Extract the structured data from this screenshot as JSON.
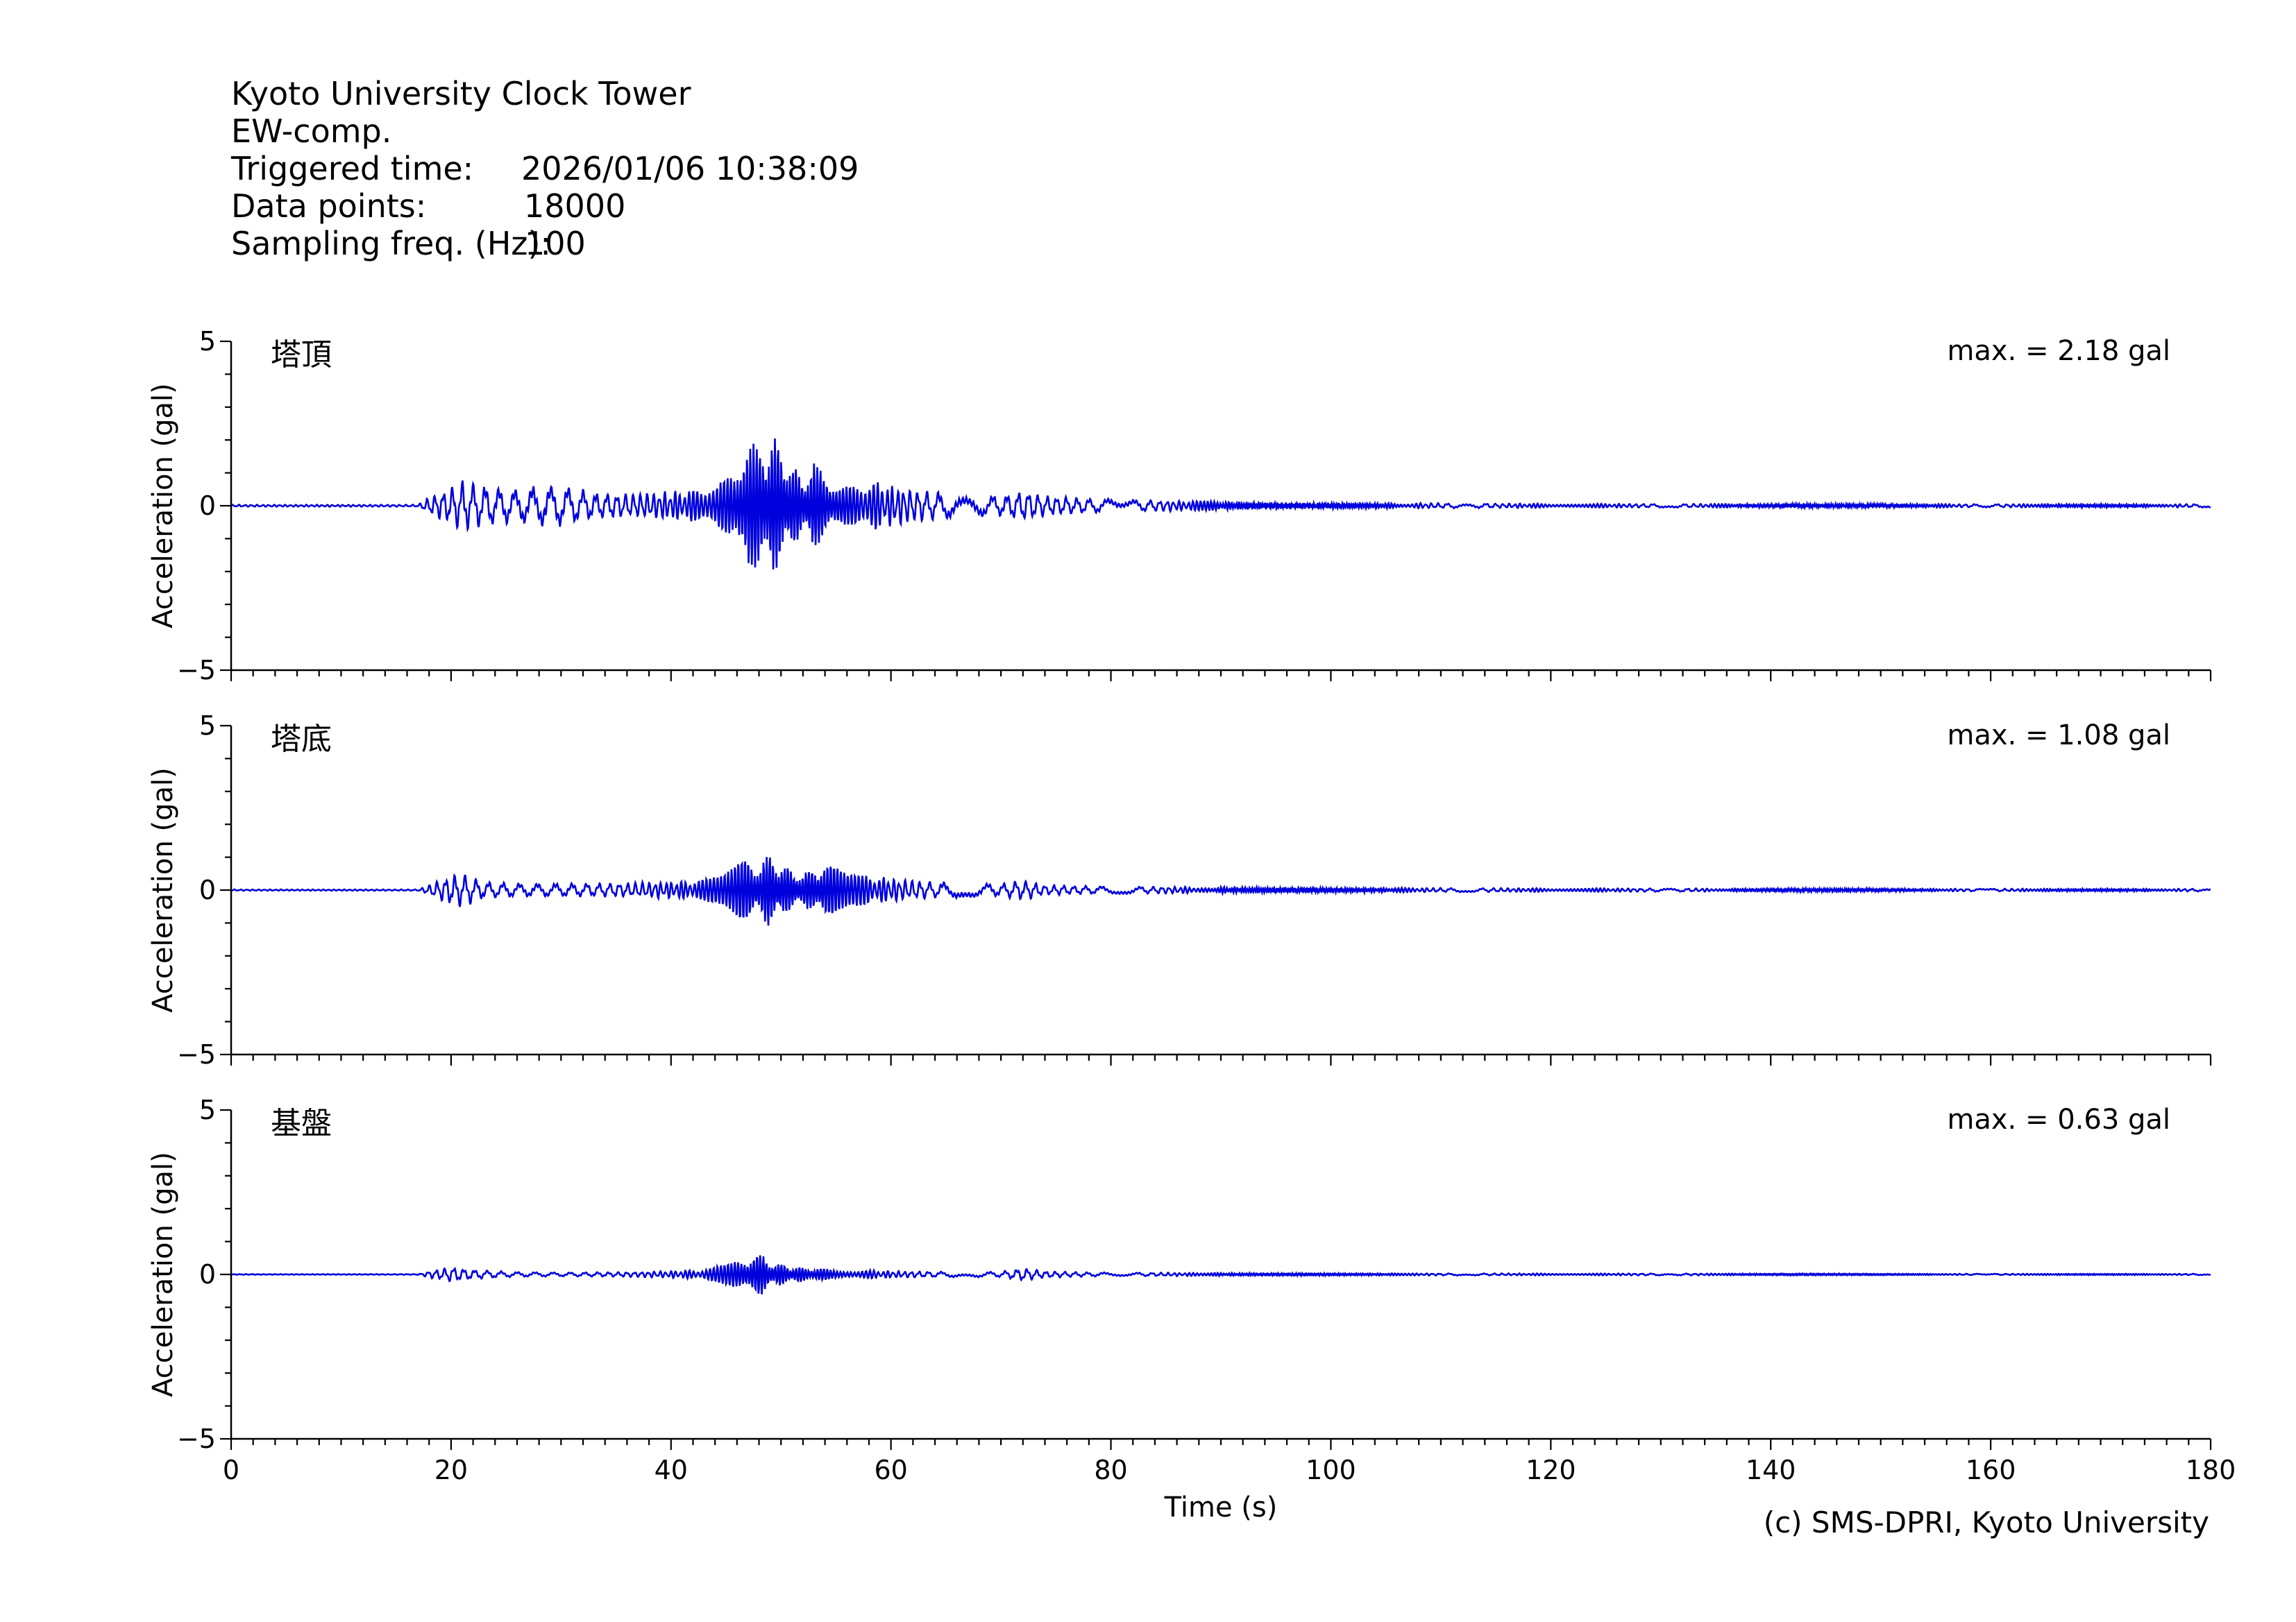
{
  "header": {
    "station": "Kyoto University Clock Tower",
    "component": "EW-comp.",
    "triggered_label": "Triggered time:",
    "triggered_value": "2026/01/06 10:38:09",
    "points_label": "Data points:",
    "points_value": "18000",
    "freq_label": "Sampling freq. (Hz):",
    "freq_value": "100"
  },
  "credit": "(c) SMS-DPRI, Kyoto University",
  "colors": {
    "trace": "#0000dd",
    "axis": "#000000"
  },
  "chart_data": [
    {
      "type": "line",
      "panel": "塔頂",
      "max_label": "max. = 2.18 gal",
      "peak": 2.18,
      "ylabel": "Acceleration (gal)",
      "xlabel": "",
      "xlim": [
        0,
        180
      ],
      "ylim": [
        -5,
        5
      ],
      "yticks": [
        -5,
        0,
        5
      ],
      "yticklabels": [
        "−5",
        "0",
        "5"
      ],
      "xticks": [
        0,
        20,
        40,
        60,
        80,
        100,
        120,
        140,
        160,
        180
      ],
      "xticklabels": [],
      "envelope": {
        "t": [
          0,
          17,
          18,
          20,
          21,
          23,
          26,
          28,
          30,
          33,
          36,
          39,
          42,
          44,
          45,
          46,
          47,
          48,
          49,
          50,
          51,
          52,
          53,
          54,
          55,
          57,
          60,
          63,
          66,
          70,
          72,
          74,
          78,
          82,
          88,
          95,
          105,
          120,
          140,
          160,
          180
        ],
        "a": [
          0.03,
          0.03,
          0.25,
          0.55,
          0.75,
          0.6,
          0.5,
          0.6,
          0.6,
          0.4,
          0.35,
          0.4,
          0.45,
          0.8,
          1.3,
          1.6,
          2.0,
          1.8,
          2.18,
          1.7,
          1.2,
          0.9,
          1.3,
          1.0,
          0.8,
          0.8,
          0.6,
          0.45,
          0.35,
          0.3,
          0.45,
          0.3,
          0.22,
          0.18,
          0.14,
          0.1,
          0.08,
          0.06,
          0.05,
          0.05,
          0.05
        ]
      }
    },
    {
      "type": "line",
      "panel": "塔底",
      "max_label": "max. = 1.08 gal",
      "peak": 1.08,
      "ylabel": "Acceleration (gal)",
      "xlabel": "",
      "xlim": [
        0,
        180
      ],
      "ylim": [
        -5,
        5
      ],
      "yticks": [
        -5,
        0,
        5
      ],
      "yticklabels": [
        "−5",
        "0",
        "5"
      ],
      "xticks": [
        0,
        20,
        40,
        60,
        80,
        100,
        120,
        140,
        160,
        180
      ],
      "xticklabels": [],
      "envelope": {
        "t": [
          0,
          17,
          18,
          20,
          21,
          23,
          26,
          30,
          35,
          40,
          43,
          45,
          46,
          47,
          48,
          49,
          50,
          51,
          52,
          53,
          54,
          56,
          60,
          63,
          66,
          70,
          72,
          74,
          78,
          85,
          95,
          110,
          130,
          150,
          180
        ],
        "a": [
          0.02,
          0.02,
          0.15,
          0.45,
          0.5,
          0.25,
          0.2,
          0.2,
          0.2,
          0.25,
          0.3,
          0.6,
          0.8,
          1.0,
          0.85,
          1.08,
          0.8,
          0.6,
          0.45,
          0.7,
          0.9,
          0.5,
          0.35,
          0.25,
          0.22,
          0.18,
          0.3,
          0.15,
          0.12,
          0.1,
          0.08,
          0.06,
          0.05,
          0.04,
          0.04
        ]
      }
    },
    {
      "type": "line",
      "panel": "基盤",
      "max_label": "max. = 0.63 gal",
      "peak": 0.63,
      "ylabel": "Acceleration (gal)",
      "xlabel": "Time (s)",
      "xlim": [
        0,
        180
      ],
      "ylim": [
        -5,
        5
      ],
      "yticks": [
        -5,
        0,
        5
      ],
      "yticklabels": [
        "−5",
        "0",
        "5"
      ],
      "xticks": [
        0,
        20,
        40,
        60,
        80,
        100,
        120,
        140,
        160,
        180
      ],
      "xticklabels": [
        "0",
        "20",
        "40",
        "60",
        "80",
        "100",
        "120",
        "140",
        "160",
        "180"
      ],
      "envelope": {
        "t": [
          0,
          17,
          18,
          20,
          22,
          25,
          30,
          35,
          40,
          43,
          45,
          46,
          47,
          48,
          49,
          50,
          52,
          55,
          60,
          65,
          70,
          72,
          74,
          78,
          85,
          95,
          110,
          130,
          150,
          180
        ],
        "a": [
          0.01,
          0.01,
          0.1,
          0.22,
          0.15,
          0.08,
          0.06,
          0.07,
          0.1,
          0.15,
          0.3,
          0.45,
          0.55,
          0.63,
          0.4,
          0.3,
          0.2,
          0.15,
          0.1,
          0.08,
          0.08,
          0.2,
          0.1,
          0.06,
          0.05,
          0.04,
          0.03,
          0.03,
          0.02,
          0.02
        ]
      }
    }
  ]
}
